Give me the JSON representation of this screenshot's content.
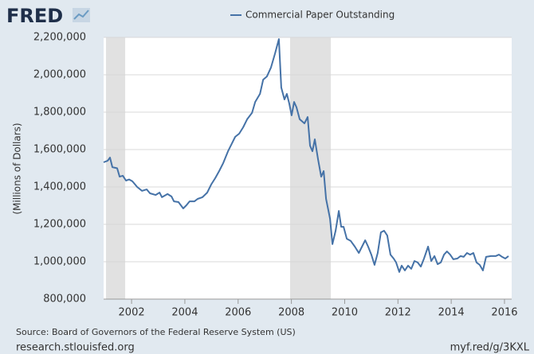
{
  "brand": "FRED",
  "chart_data": {
    "type": "line",
    "x": [
      2000.95,
      2001.1,
      2001.19,
      2001.28,
      2001.46,
      2001.55,
      2001.67,
      2001.79,
      2001.91,
      2002.03,
      2002.21,
      2002.39,
      2002.57,
      2002.69,
      2002.9,
      2003.05,
      2003.14,
      2003.35,
      2003.5,
      2003.59,
      2003.76,
      2003.94,
      2004.06,
      2004.18,
      2004.36,
      2004.48,
      2004.66,
      2004.84,
      2004.99,
      2005.14,
      2005.29,
      2005.44,
      2005.62,
      2005.74,
      2005.89,
      2006.04,
      2006.19,
      2006.34,
      2006.52,
      2006.64,
      2006.82,
      2006.94,
      2007.08,
      2007.23,
      2007.38,
      2007.53,
      2007.62,
      2007.74,
      2007.83,
      2007.92,
      2008.01,
      2008.1,
      2008.19,
      2008.31,
      2008.49,
      2008.61,
      2008.7,
      2008.79,
      2008.88,
      2009.0,
      2009.12,
      2009.21,
      2009.3,
      2009.45,
      2009.54,
      2009.66,
      2009.78,
      2009.87,
      2009.96,
      2010.08,
      2010.23,
      2010.38,
      2010.53,
      2010.65,
      2010.77,
      2010.88,
      2011.0,
      2011.12,
      2011.24,
      2011.36,
      2011.48,
      2011.6,
      2011.72,
      2011.84,
      2011.93,
      2012.05,
      2012.14,
      2012.26,
      2012.38,
      2012.5,
      2012.62,
      2012.74,
      2012.86,
      2012.98,
      2013.13,
      2013.25,
      2013.37,
      2013.49,
      2013.61,
      2013.73,
      2013.84,
      2013.96,
      2014.08,
      2014.23,
      2014.35,
      2014.47,
      2014.59,
      2014.71,
      2014.83,
      2014.95,
      2015.07,
      2015.19,
      2015.31,
      2015.49,
      2015.67,
      2015.79,
      2015.91,
      2016.03,
      2016.15
    ],
    "series": [
      {
        "name": "Commercial Paper Outstanding",
        "color": "#4572a7",
        "values": [
          1532000,
          1540000,
          1557000,
          1506000,
          1500000,
          1455000,
          1460000,
          1434000,
          1440000,
          1430000,
          1400000,
          1379000,
          1387000,
          1366000,
          1357000,
          1370000,
          1345000,
          1362000,
          1349000,
          1323000,
          1319000,
          1285000,
          1302000,
          1323000,
          1323000,
          1336000,
          1345000,
          1370000,
          1413000,
          1447000,
          1485000,
          1528000,
          1591000,
          1625000,
          1668000,
          1685000,
          1719000,
          1762000,
          1796000,
          1855000,
          1898000,
          1974000,
          1991000,
          2038000,
          2111000,
          2191000,
          1932000,
          1868000,
          1898000,
          1847000,
          1783000,
          1855000,
          1826000,
          1762000,
          1740000,
          1774000,
          1621000,
          1591000,
          1655000,
          1549000,
          1455000,
          1485000,
          1336000,
          1230000,
          1094000,
          1166000,
          1272000,
          1187000,
          1187000,
          1123000,
          1111000,
          1081000,
          1047000,
          1081000,
          1115000,
          1081000,
          1038000,
          983000,
          1047000,
          1157000,
          1166000,
          1140000,
          1038000,
          1017000,
          996000,
          945000,
          979000,
          953000,
          979000,
          962000,
          1004000,
          996000,
          974000,
          1017000,
          1081000,
          1004000,
          1030000,
          987000,
          996000,
          1038000,
          1055000,
          1038000,
          1013000,
          1017000,
          1030000,
          1026000,
          1047000,
          1038000,
          1047000,
          996000,
          983000,
          953000,
          1026000,
          1030000,
          1030000,
          1038000,
          1026000,
          1017000,
          1030000
        ]
      }
    ],
    "shaded_ranges": [
      [
        2001.04,
        2001.76
      ],
      [
        2007.95,
        2009.48
      ]
    ],
    "xlim": [
      2000.95,
      2016.27
    ],
    "xticks": [
      2002,
      2004,
      2006,
      2008,
      2010,
      2012,
      2014,
      2016
    ],
    "ylim": [
      800000,
      2200000
    ],
    "yticks": [
      {
        "value": 800000,
        "label": "800,000"
      },
      {
        "value": 1000000,
        "label": "1,000,000"
      },
      {
        "value": 1200000,
        "label": "1,200,000"
      },
      {
        "value": 1400000,
        "label": "1,400,000"
      },
      {
        "value": 1600000,
        "label": "1,600,000"
      },
      {
        "value": 1800000,
        "label": "1,800,000"
      },
      {
        "value": 2000000,
        "label": "2,000,000"
      },
      {
        "value": 2200000,
        "label": "2,200,000"
      }
    ],
    "y_label": "(Millions of Dollars)",
    "grid": true
  },
  "footer": {
    "source": "Source: Board of Governors of the Federal Reserve System (US)",
    "left_link": "research.stlouisfed.org",
    "right_link": "myf.red/g/3KXL"
  }
}
